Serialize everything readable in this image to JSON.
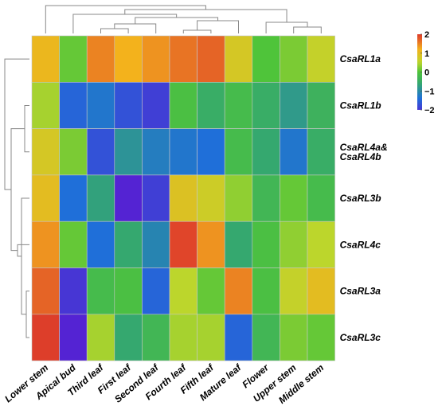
{
  "chart_data": {
    "type": "heatmap",
    "title": "",
    "xlabel": "",
    "ylabel": "",
    "columns": [
      "Lower stem",
      "Apical bud",
      "Third leaf",
      "First leaf",
      "Second leaf",
      "Fourth leaf",
      "Fifth leaf",
      "Mature leaf",
      "Flower",
      "Upper stem",
      "Middle stem"
    ],
    "rows": [
      {
        "label_lines": [
          "CsaRL1a"
        ],
        "values": [
          1.1,
          0.1,
          1.5,
          1.2,
          1.4,
          1.6,
          1.7,
          0.8,
          0.0,
          0.2,
          0.6
        ]
      },
      {
        "label_lines": [
          "CsaRL1b"
        ],
        "values": [
          0.4,
          -1.5,
          -1.3,
          -1.7,
          -1.9,
          -0.1,
          -0.5,
          -0.2,
          -0.5,
          -0.8,
          -0.4
        ]
      },
      {
        "label_lines": [
          "CsaRL4a&",
          "CsaRL4b"
        ],
        "values": [
          0.8,
          0.2,
          -1.7,
          -0.9,
          -1.2,
          -1.3,
          -1.4,
          -0.2,
          -0.6,
          -1.3,
          -0.5
        ]
      },
      {
        "label_lines": [
          "CsaRL3b"
        ],
        "values": [
          1.0,
          -1.4,
          -0.7,
          -2.2,
          -1.9,
          0.9,
          0.7,
          0.3,
          -0.3,
          0.1,
          -0.2
        ]
      },
      {
        "label_lines": [
          "CsaRL4c"
        ],
        "values": [
          1.4,
          0.1,
          -1.4,
          -0.6,
          -1.1,
          1.9,
          1.4,
          -0.6,
          -0.1,
          0.3,
          0.5
        ]
      },
      {
        "label_lines": [
          "CsaRL3a"
        ],
        "values": [
          1.7,
          -2.0,
          -0.2,
          -0.1,
          -1.5,
          0.5,
          0.1,
          1.5,
          -0.1,
          0.6,
          1.0
        ]
      },
      {
        "label_lines": [
          "CsaRL3c"
        ],
        "values": [
          2.0,
          -2.2,
          0.4,
          -0.6,
          -0.3,
          0.4,
          0.4,
          -1.5,
          -0.3,
          0.2,
          0.1
        ]
      }
    ],
    "color_scale": {
      "min": -2,
      "max": 2,
      "ticks": [
        "2",
        "1",
        "0",
        "−1",
        "−2"
      ],
      "tick_values": [
        2,
        1,
        0,
        -1,
        -2
      ],
      "colors": [
        "#5b19d2",
        "#1f6fd9",
        "#35a86f",
        "#4fc43a",
        "#bcd62c",
        "#f3b21c",
        "#e0452a",
        "#d42a28"
      ],
      "stops": [
        -2.3,
        -1.4,
        -0.6,
        0.0,
        0.5,
        1.2,
        1.9,
        2.3
      ]
    },
    "legend": "right",
    "grid": false
  }
}
